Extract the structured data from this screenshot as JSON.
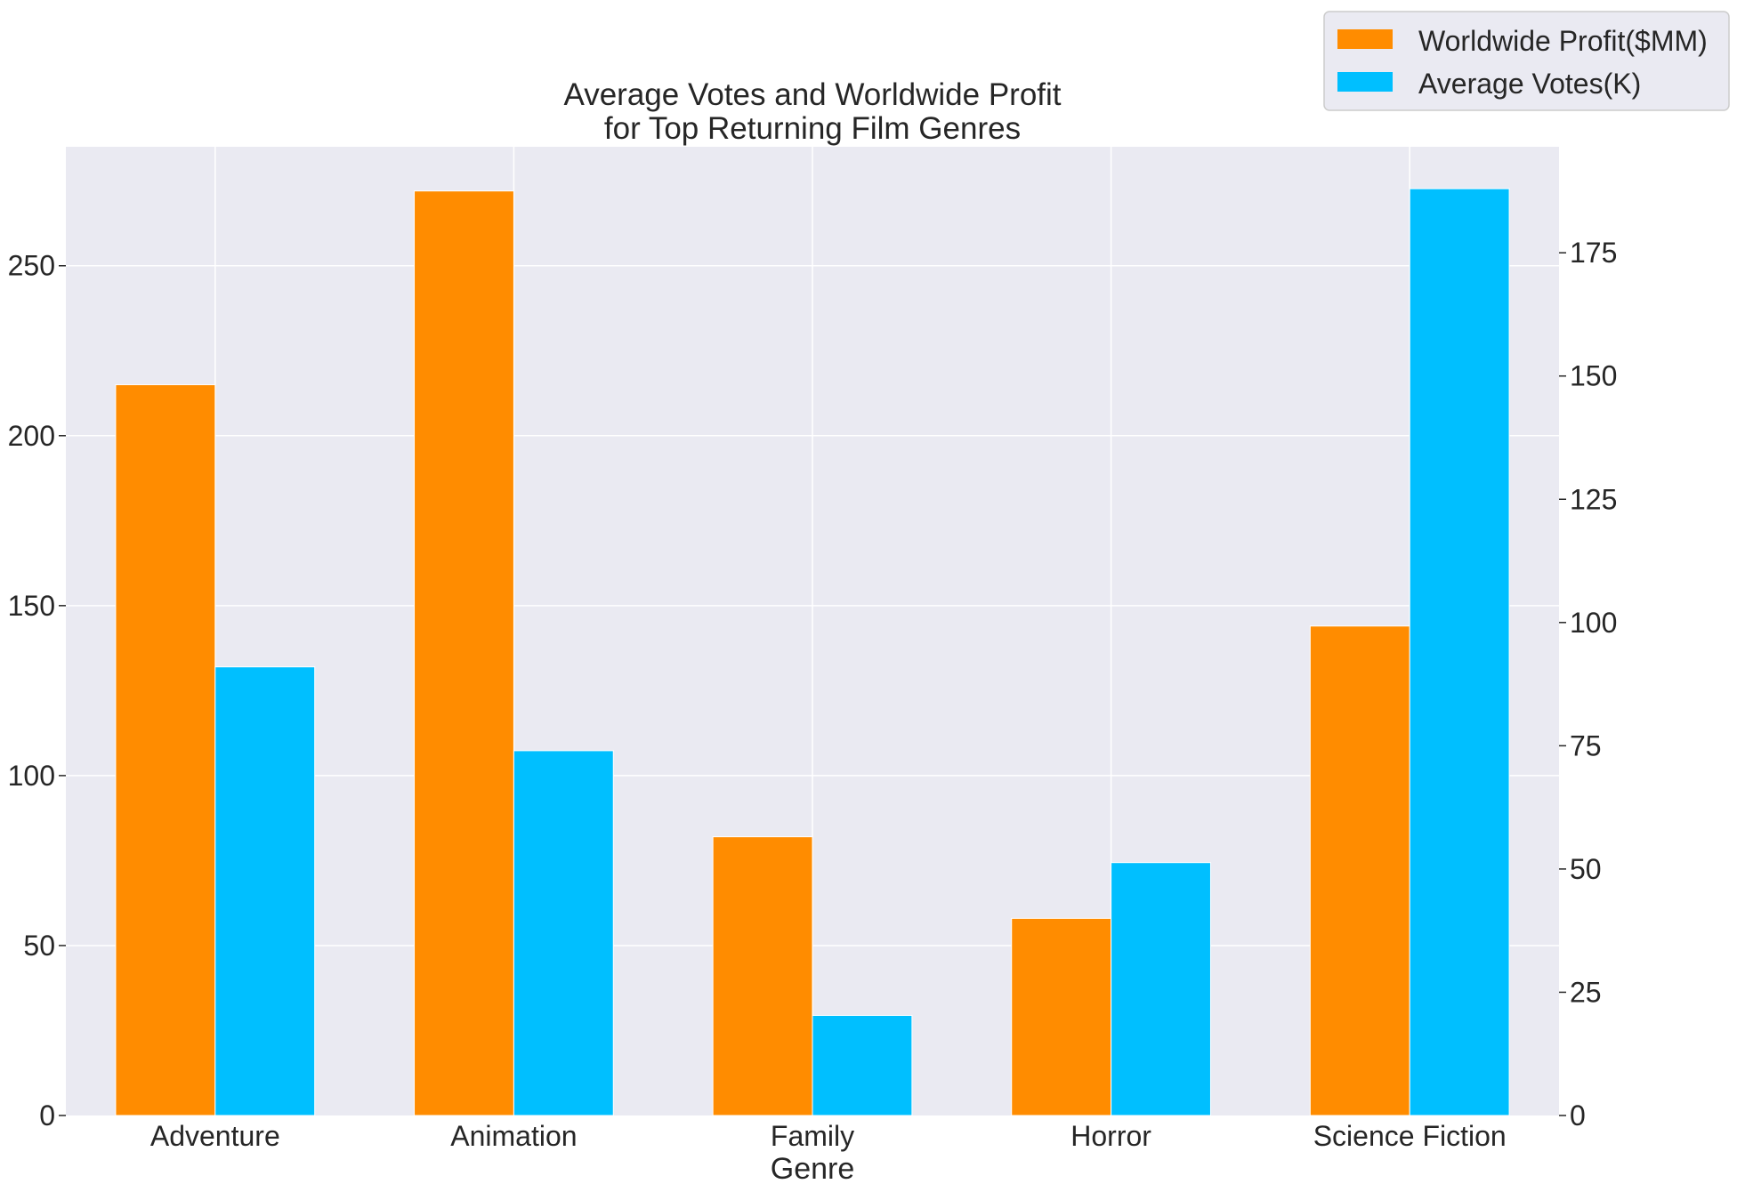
{
  "chart_data": {
    "type": "bar",
    "title_lines": [
      "Average Votes and Worldwide Profit",
      "for Top Returning Film Genres"
    ],
    "xlabel": "Genre",
    "categories": [
      "Adventure",
      "Animation",
      "Family",
      "Horror",
      "Science Fiction"
    ],
    "series": [
      {
        "name": "Worldwide Profit($MM)",
        "axis": "left",
        "color": "#ff8c00",
        "values": [
          215,
          272,
          82,
          58,
          144
        ]
      },
      {
        "name": "Average Votes(K)",
        "axis": "right",
        "color": "#00bfff",
        "values": [
          91,
          74,
          20.3,
          51.3,
          188
        ]
      }
    ],
    "y_left": {
      "ylim": [
        0,
        285
      ],
      "ticks": [
        0,
        50,
        100,
        150,
        200,
        250
      ]
    },
    "y_right": {
      "ylim": [
        0,
        196.5
      ],
      "ticks": [
        0,
        25,
        50,
        75,
        100,
        125,
        150,
        175
      ]
    },
    "grid": true,
    "legend_position": "top-right"
  }
}
